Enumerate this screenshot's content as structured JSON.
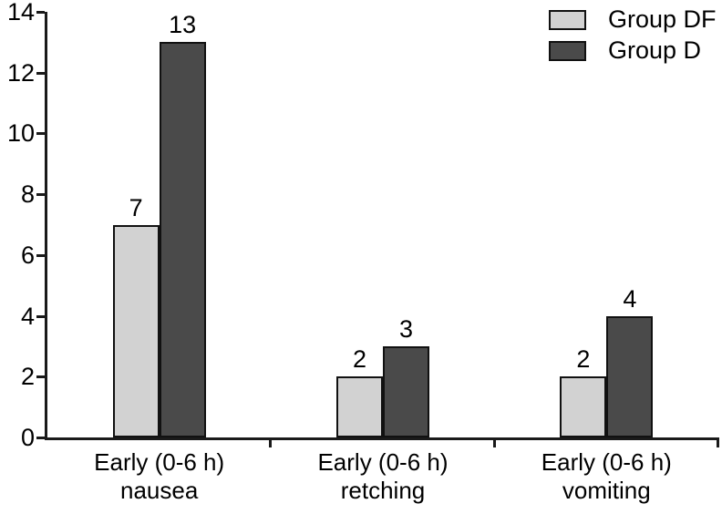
{
  "chart_data": {
    "type": "bar",
    "title": "",
    "xlabel": "",
    "ylabel": "",
    "categories": [
      "Early (0-6 h)\nnausea",
      "Early (0-6 h)\nretching",
      "Early (0-6 h)\nvomiting"
    ],
    "series": [
      {
        "name": "Group DF",
        "color": "#d2d2d2",
        "values": [
          7,
          2,
          2
        ]
      },
      {
        "name": "Group D",
        "color": "#4a4a4a",
        "values": [
          13,
          3,
          4
        ]
      }
    ],
    "ylim": [
      0,
      14
    ],
    "yticks": [
      0,
      2,
      4,
      6,
      8,
      10,
      12,
      14
    ],
    "grid": "off",
    "legend_position": "top-right",
    "data_labels": true
  }
}
